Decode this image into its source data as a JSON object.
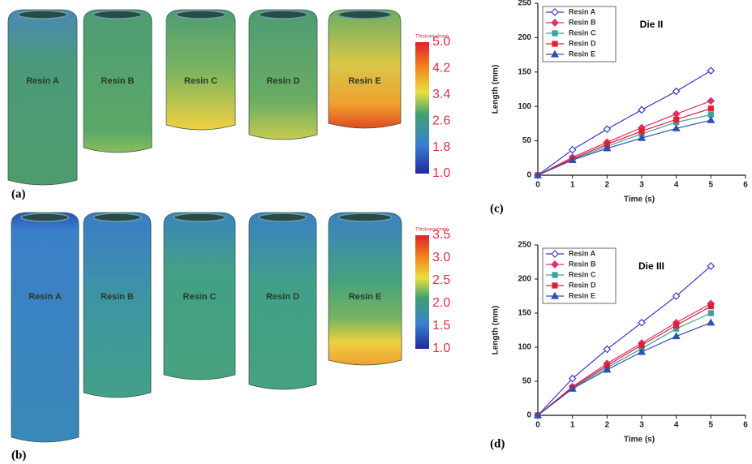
{
  "chart_data": [
    {
      "type": "line",
      "title": "Die II",
      "x_label": "Time (s)",
      "y_label": "Length (mm)",
      "x": [
        0,
        1,
        2,
        3,
        4,
        5
      ],
      "xlim": [
        0,
        6
      ],
      "xticks": [
        0,
        1,
        2,
        3,
        4,
        5,
        6
      ],
      "ylim": [
        0,
        250
      ],
      "yticks": [
        0,
        50,
        100,
        150,
        200,
        250
      ],
      "series": [
        {
          "name": "Resin A",
          "color": "#3a3acc",
          "marker": "diamond-open",
          "values": [
            0,
            37,
            67,
            95,
            122,
            152
          ]
        },
        {
          "name": "Resin B",
          "color": "#e0306a",
          "marker": "diamond",
          "values": [
            0,
            26,
            48,
            69,
            89,
            108
          ]
        },
        {
          "name": "Resin C",
          "color": "#40a0a0",
          "marker": "square",
          "values": [
            0,
            23,
            42,
            60,
            77,
            88
          ]
        },
        {
          "name": "Resin D",
          "color": "#e02030",
          "marker": "square",
          "values": [
            0,
            24,
            45,
            64,
            81,
            97
          ]
        },
        {
          "name": "Resin E",
          "color": "#3050b0",
          "marker": "triangle",
          "values": [
            0,
            22,
            39,
            54,
            68,
            80
          ]
        }
      ]
    },
    {
      "type": "line",
      "title": "Die III",
      "x_label": "Time (s)",
      "y_label": "Length (mm)",
      "x": [
        0,
        1,
        2,
        3,
        4,
        5
      ],
      "xlim": [
        0,
        6
      ],
      "xticks": [
        0,
        1,
        2,
        3,
        4,
        5,
        6
      ],
      "ylim": [
        0,
        250
      ],
      "yticks": [
        0,
        50,
        100,
        150,
        200,
        250
      ],
      "series": [
        {
          "name": "Resin A",
          "color": "#3a3acc",
          "marker": "diamond-open",
          "values": [
            0,
            54,
            97,
            136,
            175,
            219
          ]
        },
        {
          "name": "Resin B",
          "color": "#e0306a",
          "marker": "diamond",
          "values": [
            0,
            42,
            76,
            106,
            136,
            164
          ]
        },
        {
          "name": "Resin C",
          "color": "#40a0a0",
          "marker": "square",
          "values": [
            0,
            40,
            70,
            98,
            127,
            150
          ]
        },
        {
          "name": "Resin D",
          "color": "#e02030",
          "marker": "square",
          "values": [
            0,
            41,
            73,
            103,
            132,
            160
          ]
        },
        {
          "name": "Resin E",
          "color": "#3050b0",
          "marker": "triangle",
          "values": [
            0,
            39,
            67,
            93,
            116,
            136
          ]
        }
      ]
    }
  ],
  "panels": {
    "a": {
      "label": "(a)",
      "legend_title": "Thickness(mm)",
      "scale_labels": [
        "5.0",
        "4.2",
        "3.4",
        "2.6",
        "1.8",
        "1.0"
      ],
      "items": [
        "Resin A",
        "Resin B",
        "Resin C",
        "Resin D",
        "Resin E"
      ]
    },
    "b": {
      "label": "(b)",
      "legend_title": "Thickness(mm)",
      "scale_labels": [
        "3.5",
        "3.0",
        "2.5",
        "2.0",
        "1.5",
        "1.0"
      ],
      "items": [
        "Resin A",
        "Resin B",
        "Resin C",
        "Resin D",
        "Resin E"
      ]
    },
    "c": {
      "label": "(c)"
    },
    "d": {
      "label": "(d)"
    }
  }
}
